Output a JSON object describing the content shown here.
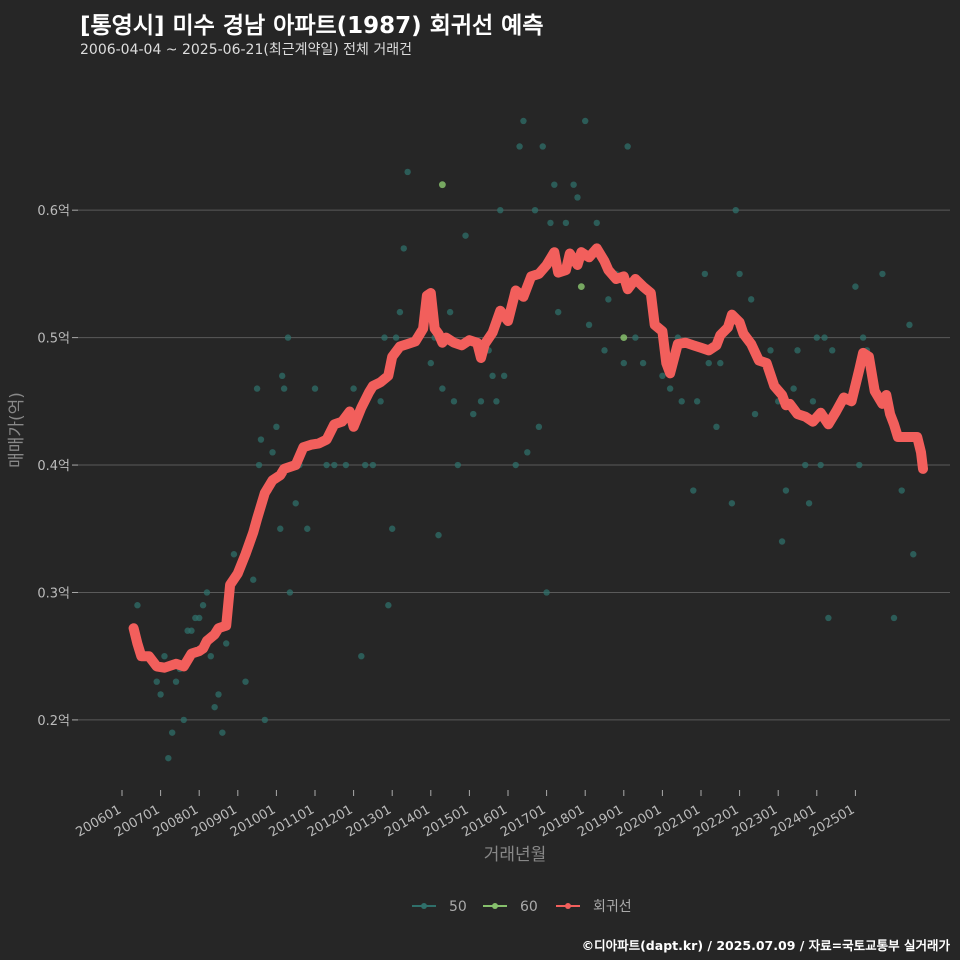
{
  "title": "[통영시] 미수 경남 아파트(1987) 회귀선 예측",
  "subtitle": "2006-04-04 ~ 2025-06-21(최근계약일) 전체 거래건",
  "caption": "©디아파트(dapt.kr) / 2025.07.09 / 자료=국토교통부 실거래가",
  "colors": {
    "background": "#262626",
    "grid": "#5a5a5a",
    "s50": "#2f6f6a",
    "s60": "#86c06c",
    "trend": "#f25f5c"
  },
  "chart_data": {
    "type": "scatter",
    "xlabel": "거래년월",
    "ylabel": "매매가(억)",
    "ylim": [
      0.145,
      0.71
    ],
    "xlim": [
      2005.75,
      2026.25
    ],
    "yticks": [
      {
        "value": 0.2,
        "label": "0.2억"
      },
      {
        "value": 0.3,
        "label": "0.3억"
      },
      {
        "value": 0.4,
        "label": "0.4억"
      },
      {
        "value": 0.5,
        "label": "0.5억"
      },
      {
        "value": 0.6,
        "label": "0.6억"
      }
    ],
    "xticks": [
      "200601",
      "200701",
      "200801",
      "200901",
      "201001",
      "201101",
      "201201",
      "201301",
      "201401",
      "201501",
      "201601",
      "201701",
      "201801",
      "201901",
      "202001",
      "202101",
      "202201",
      "202301",
      "202401",
      "202501"
    ],
    "legend": [
      {
        "name": "50",
        "color": "#2f6f6a"
      },
      {
        "name": "60",
        "color": "#86c06c"
      },
      {
        "name": "회귀선",
        "color": "#f25f5c"
      }
    ],
    "series": [
      {
        "name": "50",
        "points": [
          [
            2006.3,
            0.27
          ],
          [
            2006.4,
            0.29
          ],
          [
            2006.6,
            0.25
          ],
          [
            2006.9,
            0.23
          ],
          [
            2007.0,
            0.22
          ],
          [
            2007.1,
            0.25
          ],
          [
            2007.2,
            0.17
          ],
          [
            2007.3,
            0.19
          ],
          [
            2007.4,
            0.23
          ],
          [
            2007.5,
            0.24
          ],
          [
            2007.6,
            0.2
          ],
          [
            2007.7,
            0.27
          ],
          [
            2007.8,
            0.27
          ],
          [
            2007.9,
            0.28
          ],
          [
            2008.0,
            0.28
          ],
          [
            2008.1,
            0.29
          ],
          [
            2008.2,
            0.3
          ],
          [
            2008.3,
            0.25
          ],
          [
            2008.4,
            0.21
          ],
          [
            2008.5,
            0.22
          ],
          [
            2008.6,
            0.19
          ],
          [
            2008.7,
            0.26
          ],
          [
            2008.8,
            0.3
          ],
          [
            2008.9,
            0.33
          ],
          [
            2009.1,
            0.32
          ],
          [
            2009.2,
            0.23
          ],
          [
            2009.3,
            0.34
          ],
          [
            2009.4,
            0.31
          ],
          [
            2009.5,
            0.46
          ],
          [
            2009.55,
            0.4
          ],
          [
            2009.6,
            0.42
          ],
          [
            2009.7,
            0.2
          ],
          [
            2009.8,
            0.38
          ],
          [
            2009.9,
            0.41
          ],
          [
            2010.0,
            0.43
          ],
          [
            2010.1,
            0.35
          ],
          [
            2010.15,
            0.47
          ],
          [
            2010.2,
            0.46
          ],
          [
            2010.3,
            0.5
          ],
          [
            2010.35,
            0.3
          ],
          [
            2010.5,
            0.37
          ],
          [
            2010.6,
            0.4
          ],
          [
            2010.8,
            0.35
          ],
          [
            2011.0,
            0.46
          ],
          [
            2011.3,
            0.4
          ],
          [
            2011.5,
            0.4
          ],
          [
            2011.8,
            0.4
          ],
          [
            2012.0,
            0.46
          ],
          [
            2012.2,
            0.25
          ],
          [
            2012.3,
            0.4
          ],
          [
            2012.5,
            0.4
          ],
          [
            2012.7,
            0.45
          ],
          [
            2012.8,
            0.5
          ],
          [
            2012.9,
            0.29
          ],
          [
            2013.0,
            0.35
          ],
          [
            2013.1,
            0.5
          ],
          [
            2013.2,
            0.52
          ],
          [
            2013.3,
            0.57
          ],
          [
            2013.4,
            0.63
          ],
          [
            2013.6,
            0.5
          ],
          [
            2013.8,
            0.52
          ],
          [
            2014.0,
            0.48
          ],
          [
            2014.1,
            0.5
          ],
          [
            2014.2,
            0.345
          ],
          [
            2014.3,
            0.46
          ],
          [
            2014.5,
            0.52
          ],
          [
            2014.6,
            0.45
          ],
          [
            2014.7,
            0.4
          ],
          [
            2014.9,
            0.58
          ],
          [
            2015.1,
            0.44
          ],
          [
            2015.3,
            0.45
          ],
          [
            2015.5,
            0.49
          ],
          [
            2015.6,
            0.47
          ],
          [
            2015.7,
            0.45
          ],
          [
            2015.8,
            0.6
          ],
          [
            2015.9,
            0.47
          ],
          [
            2016.0,
            0.52
          ],
          [
            2016.2,
            0.4
          ],
          [
            2016.3,
            0.65
          ],
          [
            2016.4,
            0.67
          ],
          [
            2016.5,
            0.41
          ],
          [
            2016.7,
            0.6
          ],
          [
            2016.8,
            0.43
          ],
          [
            2016.9,
            0.65
          ],
          [
            2017.0,
            0.3
          ],
          [
            2017.1,
            0.59
          ],
          [
            2017.2,
            0.62
          ],
          [
            2017.3,
            0.52
          ],
          [
            2017.5,
            0.59
          ],
          [
            2017.7,
            0.62
          ],
          [
            2017.8,
            0.61
          ],
          [
            2018.0,
            0.67
          ],
          [
            2018.1,
            0.51
          ],
          [
            2018.3,
            0.59
          ],
          [
            2018.5,
            0.49
          ],
          [
            2018.6,
            0.53
          ],
          [
            2018.8,
            0.55
          ],
          [
            2019.0,
            0.48
          ],
          [
            2019.1,
            0.65
          ],
          [
            2019.3,
            0.5
          ],
          [
            2019.5,
            0.48
          ],
          [
            2020.0,
            0.47
          ],
          [
            2020.2,
            0.46
          ],
          [
            2020.4,
            0.5
          ],
          [
            2020.5,
            0.45
          ],
          [
            2020.8,
            0.38
          ],
          [
            2020.9,
            0.45
          ],
          [
            2021.1,
            0.55
          ],
          [
            2021.2,
            0.48
          ],
          [
            2021.4,
            0.43
          ],
          [
            2021.5,
            0.48
          ],
          [
            2021.8,
            0.37
          ],
          [
            2021.9,
            0.6
          ],
          [
            2022.0,
            0.55
          ],
          [
            2022.3,
            0.53
          ],
          [
            2022.4,
            0.44
          ],
          [
            2022.8,
            0.49
          ],
          [
            2023.0,
            0.45
          ],
          [
            2023.1,
            0.34
          ],
          [
            2023.2,
            0.38
          ],
          [
            2023.4,
            0.46
          ],
          [
            2023.5,
            0.49
          ],
          [
            2023.7,
            0.4
          ],
          [
            2023.8,
            0.37
          ],
          [
            2023.9,
            0.45
          ],
          [
            2024.0,
            0.5
          ],
          [
            2024.1,
            0.4
          ],
          [
            2024.2,
            0.5
          ],
          [
            2024.3,
            0.28
          ],
          [
            2024.4,
            0.49
          ],
          [
            2025.0,
            0.54
          ],
          [
            2025.1,
            0.4
          ],
          [
            2025.2,
            0.5
          ],
          [
            2025.3,
            0.49
          ],
          [
            2025.7,
            0.55
          ],
          [
            2026.0,
            0.28
          ],
          [
            2026.2,
            0.38
          ],
          [
            2026.4,
            0.51
          ],
          [
            2026.5,
            0.33
          ]
        ]
      },
      {
        "name": "60",
        "points": [
          [
            2014.3,
            0.62
          ],
          [
            2017.9,
            0.54
          ],
          [
            2019.0,
            0.5
          ]
        ]
      },
      {
        "name": "회귀선",
        "points": [
          [
            2006.3,
            0.272
          ],
          [
            2006.4,
            0.26
          ],
          [
            2006.5,
            0.25
          ],
          [
            2006.7,
            0.25
          ],
          [
            2006.9,
            0.242
          ],
          [
            2007.1,
            0.241
          ],
          [
            2007.4,
            0.244
          ],
          [
            2007.6,
            0.242
          ],
          [
            2007.8,
            0.252
          ],
          [
            2008.0,
            0.254
          ],
          [
            2008.1,
            0.256
          ],
          [
            2008.2,
            0.262
          ],
          [
            2008.4,
            0.267
          ],
          [
            2008.5,
            0.272
          ],
          [
            2008.7,
            0.274
          ],
          [
            2008.8,
            0.306
          ],
          [
            2009.0,
            0.315
          ],
          [
            2009.2,
            0.33
          ],
          [
            2009.4,
            0.347
          ],
          [
            2009.5,
            0.358
          ],
          [
            2009.7,
            0.378
          ],
          [
            2009.9,
            0.388
          ],
          [
            2010.1,
            0.392
          ],
          [
            2010.2,
            0.397
          ],
          [
            2010.5,
            0.4
          ],
          [
            2010.7,
            0.414
          ],
          [
            2010.9,
            0.416
          ],
          [
            2011.1,
            0.417
          ],
          [
            2011.3,
            0.42
          ],
          [
            2011.5,
            0.432
          ],
          [
            2011.7,
            0.434
          ],
          [
            2011.9,
            0.442
          ],
          [
            2012.0,
            0.43
          ],
          [
            2012.2,
            0.445
          ],
          [
            2012.4,
            0.457
          ],
          [
            2012.5,
            0.462
          ],
          [
            2012.7,
            0.465
          ],
          [
            2012.9,
            0.47
          ],
          [
            2013.0,
            0.485
          ],
          [
            2013.2,
            0.493
          ],
          [
            2013.4,
            0.495
          ],
          [
            2013.6,
            0.497
          ],
          [
            2013.8,
            0.507
          ],
          [
            2013.9,
            0.533
          ],
          [
            2014.0,
            0.535
          ],
          [
            2014.1,
            0.507
          ],
          [
            2014.2,
            0.503
          ],
          [
            2014.3,
            0.496
          ],
          [
            2014.4,
            0.5
          ],
          [
            2014.5,
            0.498
          ],
          [
            2014.6,
            0.496
          ],
          [
            2014.8,
            0.494
          ],
          [
            2015.0,
            0.498
          ],
          [
            2015.2,
            0.496
          ],
          [
            2015.3,
            0.484
          ],
          [
            2015.4,
            0.495
          ],
          [
            2015.6,
            0.504
          ],
          [
            2015.8,
            0.521
          ],
          [
            2016.0,
            0.513
          ],
          [
            2016.2,
            0.537
          ],
          [
            2016.4,
            0.532
          ],
          [
            2016.6,
            0.548
          ],
          [
            2016.8,
            0.55
          ],
          [
            2017.0,
            0.557
          ],
          [
            2017.2,
            0.567
          ],
          [
            2017.3,
            0.551
          ],
          [
            2017.5,
            0.553
          ],
          [
            2017.6,
            0.566
          ],
          [
            2017.8,
            0.557
          ],
          [
            2017.9,
            0.567
          ],
          [
            2018.1,
            0.563
          ],
          [
            2018.3,
            0.57
          ],
          [
            2018.5,
            0.56
          ],
          [
            2018.6,
            0.553
          ],
          [
            2018.8,
            0.546
          ],
          [
            2019.0,
            0.548
          ],
          [
            2019.1,
            0.538
          ],
          [
            2019.3,
            0.546
          ],
          [
            2019.5,
            0.54
          ],
          [
            2019.7,
            0.535
          ],
          [
            2019.8,
            0.51
          ],
          [
            2020.0,
            0.505
          ],
          [
            2020.1,
            0.48
          ],
          [
            2020.2,
            0.472
          ],
          [
            2020.4,
            0.495
          ],
          [
            2020.6,
            0.496
          ],
          [
            2020.8,
            0.494
          ],
          [
            2021.0,
            0.492
          ],
          [
            2021.2,
            0.49
          ],
          [
            2021.4,
            0.494
          ],
          [
            2021.5,
            0.502
          ],
          [
            2021.7,
            0.508
          ],
          [
            2021.8,
            0.518
          ],
          [
            2022.0,
            0.512
          ],
          [
            2022.1,
            0.503
          ],
          [
            2022.3,
            0.495
          ],
          [
            2022.5,
            0.482
          ],
          [
            2022.7,
            0.48
          ],
          [
            2022.9,
            0.462
          ],
          [
            2023.1,
            0.455
          ],
          [
            2023.2,
            0.447
          ],
          [
            2023.3,
            0.448
          ],
          [
            2023.5,
            0.44
          ],
          [
            2023.7,
            0.438
          ],
          [
            2023.9,
            0.434
          ],
          [
            2024.1,
            0.441
          ],
          [
            2024.3,
            0.432
          ],
          [
            2024.5,
            0.442
          ],
          [
            2024.7,
            0.453
          ],
          [
            2024.9,
            0.45
          ],
          [
            2025.1,
            0.475
          ],
          [
            2025.2,
            0.488
          ],
          [
            2025.35,
            0.485
          ],
          [
            2025.5,
            0.458
          ],
          [
            2025.7,
            0.448
          ],
          [
            2025.8,
            0.455
          ],
          [
            2025.9,
            0.44
          ],
          [
            2026.0,
            0.432
          ],
          [
            2026.1,
            0.422
          ],
          [
            2026.4,
            0.422
          ],
          [
            2026.6,
            0.422
          ],
          [
            2026.7,
            0.41
          ],
          [
            2026.75,
            0.397
          ]
        ]
      }
    ]
  }
}
